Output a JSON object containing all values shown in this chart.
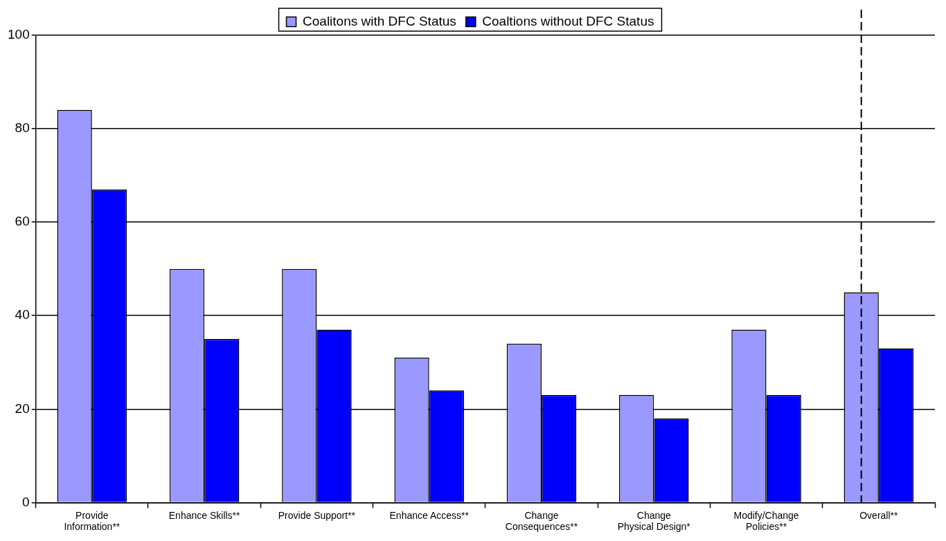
{
  "chart_data": {
    "type": "bar",
    "categories": [
      "Provide Information**",
      "Enhance Skills**",
      "Provide Support**",
      "Enhance Access**",
      "Change Consequences**",
      "Change Physical Design*",
      "Modify/Change Policies**",
      "Overall**"
    ],
    "series": [
      {
        "name": "Coalitons with DFC Status",
        "color": "#9999ff",
        "values": [
          84,
          50,
          50,
          31,
          34,
          23,
          37,
          45
        ]
      },
      {
        "name": "Coaltions without DFC Status",
        "color": "#0000ff",
        "values": [
          67,
          35,
          37,
          24,
          23,
          18,
          23,
          33
        ]
      }
    ],
    "ylim": [
      0,
      100
    ],
    "yticks": [
      0,
      20,
      40,
      60,
      80,
      100
    ],
    "grid": "y",
    "legend": "top",
    "ref_lines": [
      {
        "axis": "x",
        "value": "Overall**",
        "line_style": "dashed",
        "color": "#000000"
      }
    ]
  }
}
